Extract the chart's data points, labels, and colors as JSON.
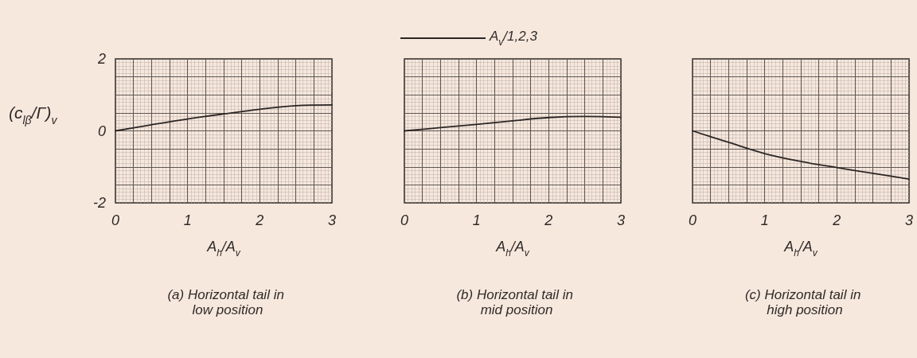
{
  "chart_data": [
    {
      "type": "line",
      "title": "(a) Horizontal tail in low position",
      "xlabel": "A$_{h}$/A$_{v}$",
      "ylabel": "(c$_{lβ}$/Γ)$_{v}$",
      "x": [
        0,
        0.5,
        1,
        1.5,
        2,
        2.5,
        3
      ],
      "series": [
        {
          "color": "#2b2624",
          "values": [
            0,
            0.17,
            0.33,
            0.47,
            0.6,
            0.7,
            0.72
          ]
        }
      ],
      "xlim": [
        0,
        3
      ],
      "ylim": [
        -2,
        2
      ],
      "xticks": [
        0,
        1,
        2,
        3
      ],
      "yticks": [
        -2,
        0,
        2
      ],
      "grid": true
    },
    {
      "type": "line",
      "title": "(b) Horizontal tail in mid position",
      "xlabel": "A$_{h}$/A$_{v}$",
      "x": [
        0,
        0.5,
        1,
        1.5,
        2,
        2.5,
        3
      ],
      "series": [
        {
          "name": "A$_{v}$/1,2,3",
          "color": "#2b2624",
          "values": [
            0,
            0.09,
            0.18,
            0.28,
            0.37,
            0.4,
            0.38
          ]
        }
      ],
      "xlim": [
        0,
        3
      ],
      "ylim": [
        -2,
        2
      ],
      "xticks": [
        0,
        1,
        2,
        3
      ],
      "yticks": [
        -2,
        0,
        2
      ],
      "grid": true,
      "legend": "top",
      "tick_labels": "x"
    },
    {
      "type": "line",
      "title": "(c) Horizontal tail in high position",
      "xlabel": "A$_{h}$/A$_{v}$",
      "x": [
        0,
        0.5,
        1,
        1.5,
        2,
        2.5,
        3
      ],
      "series": [
        {
          "color": "#2b2624",
          "values": [
            0,
            -0.32,
            -0.63,
            -0.85,
            -1.02,
            -1.18,
            -1.34
          ]
        }
      ],
      "xlim": [
        0,
        3
      ],
      "ylim": [
        -2,
        2
      ],
      "xticks": [
        0,
        1,
        2,
        3
      ],
      "yticks": [
        -2,
        0,
        2
      ],
      "grid": true,
      "tick_labels": "x"
    }
  ]
}
